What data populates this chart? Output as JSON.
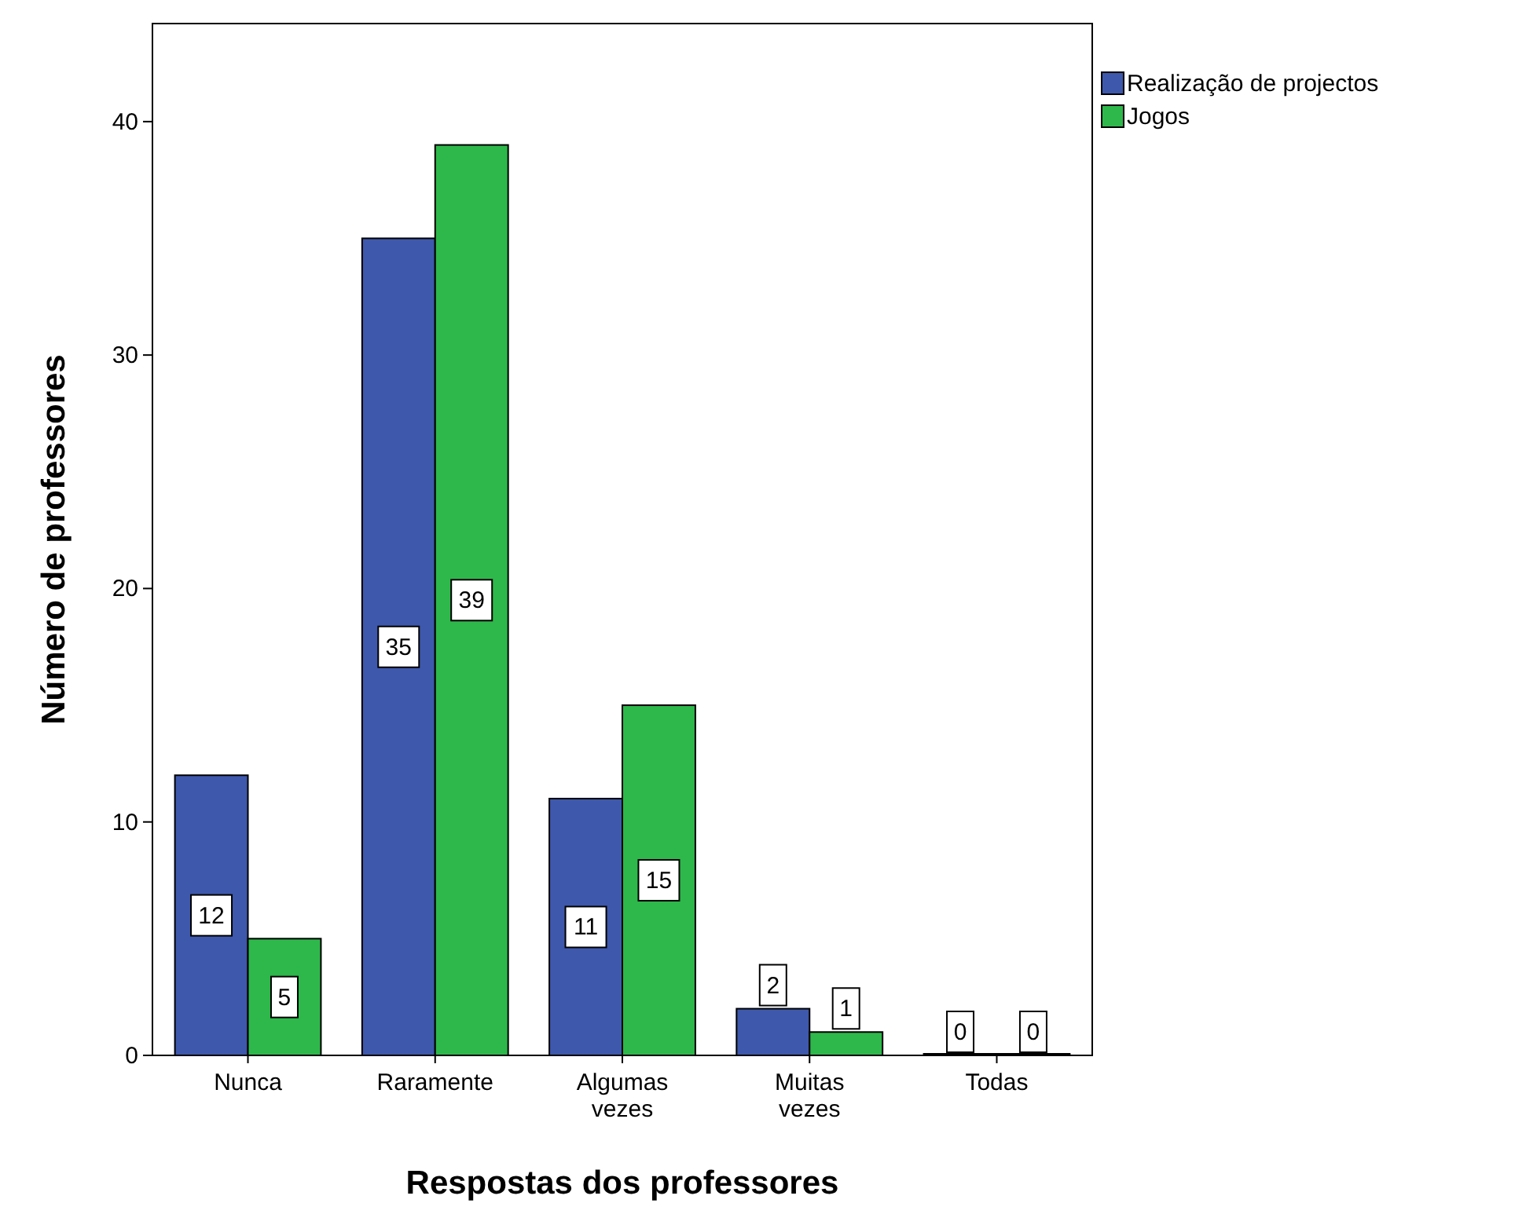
{
  "chart_data": {
    "type": "bar",
    "xlabel": "Respostas dos professores",
    "ylabel": "Número de professores",
    "categories": [
      "Nunca",
      "Raramente",
      "Algumas vezes",
      "Muitas vezes",
      "Todas"
    ],
    "series": [
      {
        "name": "Realização de projectos",
        "color": "#3e58ac",
        "values": [
          12,
          35,
          11,
          2,
          0
        ]
      },
      {
        "name": "Jogos",
        "color": "#2eb84b",
        "values": [
          5,
          39,
          15,
          1,
          0
        ]
      }
    ],
    "ylim": [
      0,
      44.2
    ],
    "yticks": [
      0,
      10,
      20,
      30,
      40
    ],
    "grid": false,
    "legend": "top right",
    "data_labels": true
  }
}
